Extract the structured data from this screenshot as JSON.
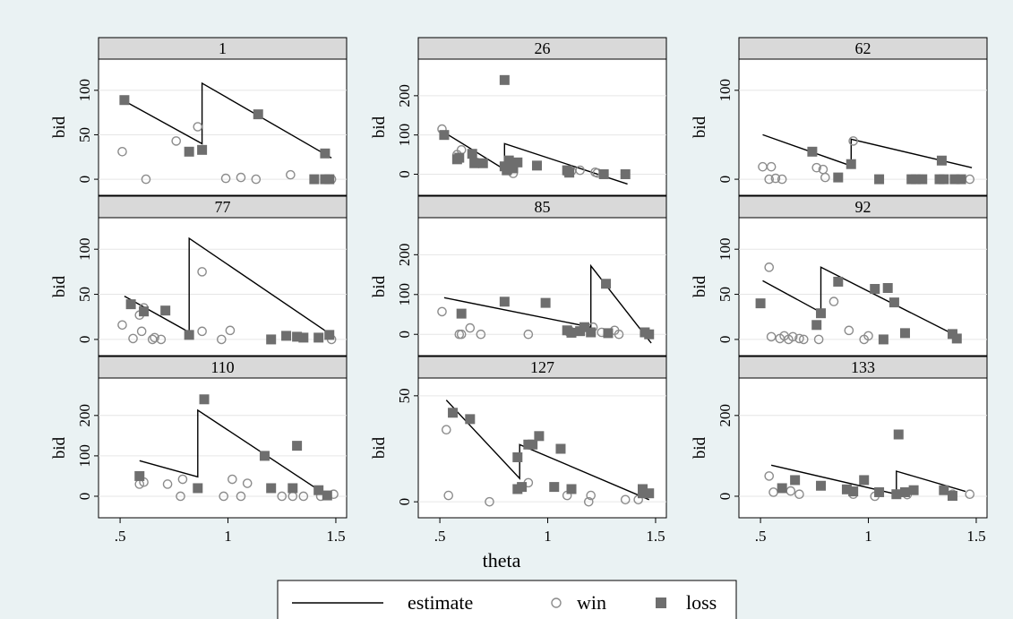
{
  "chart_data": {
    "type": "scatter",
    "xlabel": "theta",
    "ylabel": "bid",
    "xlim": [
      0.4,
      1.55
    ],
    "xticks": [
      ".5",
      "1",
      "1.5"
    ],
    "xtick_values": [
      0.5,
      1,
      1.5
    ],
    "legend": {
      "placement": "bottom",
      "entries": [
        {
          "label": "estimate",
          "marker": "line"
        },
        {
          "label": "win",
          "marker": "hollow-circle"
        },
        {
          "label": "loss",
          "marker": "filled-square"
        }
      ]
    },
    "colors": {
      "line": "#000000",
      "win": "#8c8c8c",
      "loss": "#6e6e6e",
      "panel_title_bg": "#d9d9d9",
      "outer_bg": "#eaf2f3"
    },
    "panels": [
      {
        "title": "1",
        "ylim": [
          -12,
          127
        ],
        "yticks": [
          0,
          50,
          100
        ],
        "estimate": [
          [
            0.52,
            88
          ],
          [
            0.88,
            40
          ],
          [
            0.88,
            108
          ],
          [
            1.48,
            24
          ]
        ],
        "win": [
          [
            0.51,
            31
          ],
          [
            0.62,
            0
          ],
          [
            0.76,
            43
          ],
          [
            0.86,
            59
          ],
          [
            0.99,
            1
          ],
          [
            1.06,
            2
          ],
          [
            1.13,
            0
          ],
          [
            1.29,
            5
          ],
          [
            1.48,
            0
          ]
        ],
        "loss": [
          [
            0.52,
            89
          ],
          [
            0.82,
            31
          ],
          [
            0.88,
            33
          ],
          [
            1.14,
            73
          ],
          [
            1.45,
            29
          ],
          [
            1.4,
            0
          ],
          [
            1.45,
            0
          ],
          [
            1.47,
            0
          ]
        ]
      },
      {
        "title": "26",
        "ylim": [
          -40,
          275
        ],
        "yticks": [
          0,
          100,
          200
        ],
        "estimate": [
          [
            0.51,
            110
          ],
          [
            0.8,
            12
          ],
          [
            0.8,
            78
          ],
          [
            1.37,
            -25
          ]
        ],
        "win": [
          [
            0.51,
            115
          ],
          [
            0.58,
            50
          ],
          [
            0.6,
            62
          ],
          [
            0.67,
            30
          ],
          [
            0.82,
            10
          ],
          [
            0.84,
            2
          ],
          [
            1.09,
            5
          ],
          [
            1.11,
            8
          ],
          [
            1.15,
            10
          ],
          [
            1.22,
            5
          ],
          [
            1.23,
            3
          ]
        ],
        "loss": [
          [
            0.52,
            100
          ],
          [
            0.58,
            38
          ],
          [
            0.59,
            42
          ],
          [
            0.65,
            52
          ],
          [
            0.66,
            28
          ],
          [
            0.7,
            28
          ],
          [
            0.8,
            240
          ],
          [
            0.82,
            35
          ],
          [
            0.8,
            20
          ],
          [
            0.81,
            10
          ],
          [
            0.84,
            15
          ],
          [
            0.86,
            30
          ],
          [
            0.95,
            22
          ],
          [
            1.09,
            10
          ],
          [
            1.1,
            4
          ],
          [
            1.26,
            0
          ],
          [
            1.36,
            0
          ]
        ]
      },
      {
        "title": "62",
        "ylim": [
          -12,
          127
        ],
        "yticks": [
          0,
          100
        ],
        "estimate": [
          [
            0.51,
            50
          ],
          [
            0.92,
            15
          ],
          [
            0.92,
            45
          ],
          [
            1.48,
            13
          ]
        ],
        "win": [
          [
            0.51,
            14
          ],
          [
            0.54,
            0
          ],
          [
            0.55,
            14
          ],
          [
            0.57,
            1
          ],
          [
            0.6,
            0
          ],
          [
            0.76,
            13
          ],
          [
            0.79,
            11
          ],
          [
            0.8,
            2
          ],
          [
            0.93,
            43
          ],
          [
            1.25,
            0
          ],
          [
            1.33,
            0
          ],
          [
            1.47,
            0
          ]
        ],
        "loss": [
          [
            0.74,
            31
          ],
          [
            0.86,
            2
          ],
          [
            0.92,
            17
          ],
          [
            1.05,
            0
          ],
          [
            1.2,
            0
          ],
          [
            1.22,
            0
          ],
          [
            1.25,
            0
          ],
          [
            1.33,
            0
          ],
          [
            1.35,
            0
          ],
          [
            1.34,
            21
          ],
          [
            1.4,
            0
          ],
          [
            1.43,
            0
          ]
        ]
      },
      {
        "title": "77",
        "ylim": [
          -12,
          127
        ],
        "yticks": [
          0,
          50,
          100
        ],
        "estimate": [
          [
            0.52,
            48
          ],
          [
            0.82,
            8
          ],
          [
            0.82,
            112
          ],
          [
            1.48,
            5
          ]
        ],
        "win": [
          [
            0.51,
            16
          ],
          [
            0.56,
            1
          ],
          [
            0.59,
            27
          ],
          [
            0.6,
            9
          ],
          [
            0.61,
            35
          ],
          [
            0.65,
            0
          ],
          [
            0.66,
            2
          ],
          [
            0.69,
            0
          ],
          [
            0.88,
            75
          ],
          [
            0.88,
            9
          ],
          [
            0.97,
            0
          ],
          [
            1.01,
            10
          ],
          [
            1.48,
            0
          ]
        ],
        "loss": [
          [
            0.55,
            39
          ],
          [
            0.61,
            31
          ],
          [
            0.71,
            32
          ],
          [
            0.82,
            5
          ],
          [
            1.2,
            0
          ],
          [
            1.27,
            4
          ],
          [
            1.32,
            3
          ],
          [
            1.35,
            2
          ],
          [
            1.42,
            2
          ],
          [
            1.47,
            5
          ]
        ]
      },
      {
        "title": "85",
        "ylim": [
          -40,
          275
        ],
        "yticks": [
          0,
          100,
          200
        ],
        "estimate": [
          [
            0.52,
            92
          ],
          [
            1.2,
            18
          ],
          [
            1.2,
            172
          ],
          [
            1.48,
            -22
          ]
        ],
        "win": [
          [
            0.51,
            57
          ],
          [
            0.59,
            0
          ],
          [
            0.6,
            0
          ],
          [
            0.64,
            16
          ],
          [
            0.69,
            0
          ],
          [
            0.91,
            0
          ],
          [
            1.1,
            10
          ],
          [
            1.1,
            5
          ],
          [
            1.21,
            18
          ],
          [
            1.25,
            5
          ],
          [
            1.31,
            10
          ],
          [
            1.33,
            0
          ]
        ],
        "loss": [
          [
            0.6,
            52
          ],
          [
            0.8,
            82
          ],
          [
            0.99,
            79
          ],
          [
            1.09,
            10
          ],
          [
            1.11,
            4
          ],
          [
            1.15,
            8
          ],
          [
            1.17,
            18
          ],
          [
            1.2,
            5
          ],
          [
            1.27,
            127
          ],
          [
            1.28,
            3
          ],
          [
            1.45,
            5
          ],
          [
            1.47,
            0
          ]
        ]
      },
      {
        "title": "92",
        "ylim": [
          -12,
          127
        ],
        "yticks": [
          0,
          50,
          100
        ],
        "estimate": [
          [
            0.51,
            65
          ],
          [
            0.78,
            30
          ],
          [
            0.78,
            80
          ],
          [
            1.4,
            5
          ]
        ],
        "win": [
          [
            0.54,
            80
          ],
          [
            0.55,
            3
          ],
          [
            0.59,
            1
          ],
          [
            0.61,
            4
          ],
          [
            0.63,
            0
          ],
          [
            0.65,
            3
          ],
          [
            0.68,
            1
          ],
          [
            0.7,
            0
          ],
          [
            0.77,
            0
          ],
          [
            0.84,
            42
          ],
          [
            0.91,
            10
          ],
          [
            0.98,
            0
          ],
          [
            1.0,
            4
          ]
        ],
        "loss": [
          [
            0.5,
            40
          ],
          [
            0.76,
            16
          ],
          [
            0.78,
            29
          ],
          [
            0.86,
            64
          ],
          [
            1.03,
            56
          ],
          [
            1.07,
            0
          ],
          [
            1.09,
            57
          ],
          [
            1.12,
            41
          ],
          [
            1.17,
            7
          ],
          [
            1.39,
            6
          ],
          [
            1.41,
            1
          ]
        ]
      },
      {
        "title": "110",
        "ylim": [
          -40,
          275
        ],
        "yticks": [
          0,
          100,
          200
        ],
        "estimate": [
          [
            0.59,
            88
          ],
          [
            0.86,
            48
          ],
          [
            0.86,
            213
          ],
          [
            1.45,
            5
          ]
        ],
        "win": [
          [
            0.59,
            30
          ],
          [
            0.61,
            35
          ],
          [
            0.72,
            30
          ],
          [
            0.78,
            0
          ],
          [
            0.79,
            42
          ],
          [
            0.98,
            0
          ],
          [
            1.02,
            42
          ],
          [
            1.06,
            0
          ],
          [
            1.09,
            32
          ],
          [
            1.25,
            0
          ],
          [
            1.3,
            0
          ],
          [
            1.35,
            0
          ],
          [
            1.43,
            0
          ],
          [
            1.49,
            5
          ]
        ],
        "loss": [
          [
            0.59,
            50
          ],
          [
            0.86,
            20
          ],
          [
            0.89,
            240
          ],
          [
            1.17,
            100
          ],
          [
            1.2,
            20
          ],
          [
            1.32,
            125
          ],
          [
            1.3,
            20
          ],
          [
            1.42,
            15
          ],
          [
            1.46,
            2
          ]
        ]
      },
      {
        "title": "127",
        "ylim": [
          -5,
          55
        ],
        "yticks": [
          0,
          50
        ],
        "estimate": [
          [
            0.53,
            48
          ],
          [
            0.87,
            11
          ],
          [
            0.87,
            27
          ],
          [
            1.47,
            1
          ]
        ],
        "win": [
          [
            0.53,
            34
          ],
          [
            0.54,
            3
          ],
          [
            0.73,
            0
          ],
          [
            0.91,
            9
          ],
          [
            1.09,
            3
          ],
          [
            1.19,
            0
          ],
          [
            1.2,
            3
          ],
          [
            1.36,
            1
          ],
          [
            1.42,
            1
          ]
        ],
        "loss": [
          [
            0.56,
            42
          ],
          [
            0.64,
            39
          ],
          [
            0.86,
            6
          ],
          [
            0.86,
            21
          ],
          [
            0.88,
            7
          ],
          [
            0.91,
            27
          ],
          [
            0.93,
            27
          ],
          [
            0.96,
            31
          ],
          [
            1.03,
            7
          ],
          [
            1.06,
            25
          ],
          [
            1.11,
            6
          ],
          [
            1.44,
            4
          ],
          [
            1.44,
            6
          ],
          [
            1.47,
            4
          ]
        ]
      },
      {
        "title": "133",
        "ylim": [
          -40,
          275
        ],
        "yticks": [
          0,
          200
        ],
        "estimate": [
          [
            0.55,
            77
          ],
          [
            1.13,
            5
          ],
          [
            1.13,
            62
          ],
          [
            1.45,
            12
          ]
        ],
        "win": [
          [
            0.54,
            50
          ],
          [
            0.56,
            10
          ],
          [
            0.6,
            20
          ],
          [
            0.64,
            13
          ],
          [
            0.68,
            5
          ],
          [
            0.93,
            5
          ],
          [
            1.03,
            0
          ],
          [
            1.18,
            4
          ],
          [
            1.39,
            5
          ],
          [
            1.47,
            5
          ]
        ],
        "loss": [
          [
            0.6,
            20
          ],
          [
            0.66,
            40
          ],
          [
            0.78,
            26
          ],
          [
            0.9,
            17
          ],
          [
            0.93,
            12
          ],
          [
            0.98,
            40
          ],
          [
            1.05,
            10
          ],
          [
            1.13,
            5
          ],
          [
            1.14,
            153
          ],
          [
            1.17,
            10
          ],
          [
            1.21,
            15
          ],
          [
            1.35,
            15
          ],
          [
            1.39,
            1
          ]
        ]
      }
    ]
  }
}
